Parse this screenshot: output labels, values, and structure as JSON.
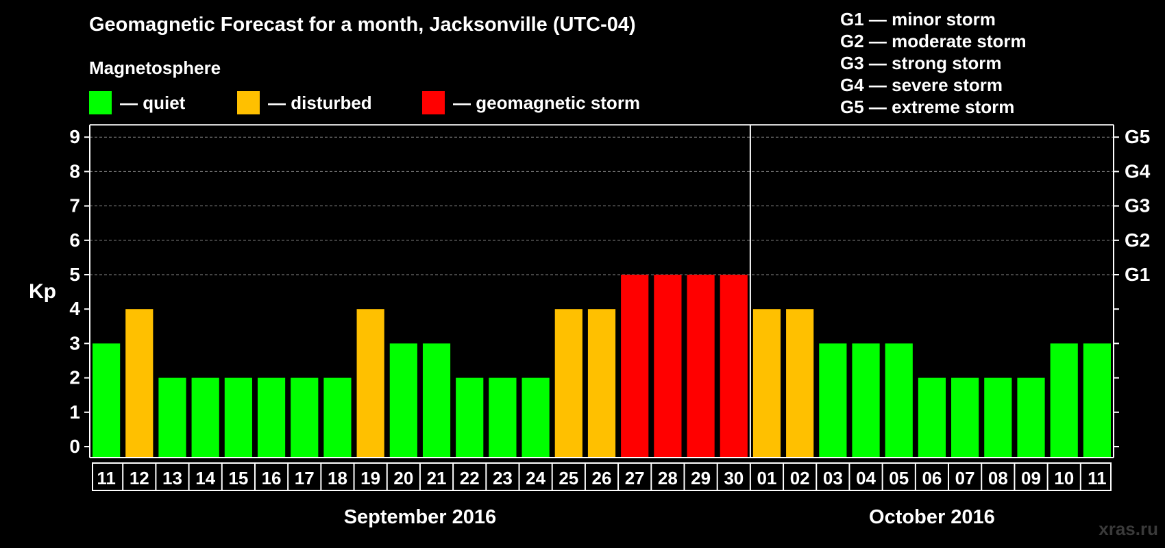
{
  "title": "Geomagnetic Forecast for a month, Jacksonville (UTC-04)",
  "legend": {
    "heading": "Magnetosphere",
    "items": [
      {
        "label": "— quiet",
        "color": "#00ff00"
      },
      {
        "label": "— disturbed",
        "color": "#ffc000"
      },
      {
        "label": "— geomagnetic storm",
        "color": "#ff0000"
      }
    ]
  },
  "g_scale": [
    "G1 — minor storm",
    "G2 — moderate storm",
    "G3 — strong storm",
    "G4 — severe storm",
    "G5 — extreme storm"
  ],
  "watermark": "xras.ru",
  "colors": {
    "quiet": "#00ff00",
    "disturbed": "#ffc000",
    "storm": "#ff0000",
    "background": "#000000",
    "axis": "#ffffff",
    "grid": "#888888"
  },
  "chart_data": {
    "type": "bar",
    "ylabel": "Kp",
    "ylim": [
      0,
      9
    ],
    "yticks": [
      0,
      1,
      2,
      3,
      4,
      5,
      6,
      7,
      8,
      9
    ],
    "right_ticks": [
      {
        "value": 5,
        "label": "G1"
      },
      {
        "value": 6,
        "label": "G2"
      },
      {
        "value": 7,
        "label": "G3"
      },
      {
        "value": 8,
        "label": "G4"
      },
      {
        "value": 9,
        "label": "G5"
      }
    ],
    "categories": [
      "11",
      "12",
      "13",
      "14",
      "15",
      "16",
      "17",
      "18",
      "19",
      "20",
      "21",
      "22",
      "23",
      "24",
      "25",
      "26",
      "27",
      "28",
      "29",
      "30",
      "01",
      "02",
      "03",
      "04",
      "05",
      "06",
      "07",
      "08",
      "09",
      "10",
      "11"
    ],
    "values": [
      3,
      4,
      2,
      2,
      2,
      2,
      2,
      2,
      4,
      3,
      3,
      2,
      2,
      2,
      4,
      4,
      5,
      5,
      5,
      5,
      4,
      4,
      3,
      3,
      3,
      2,
      2,
      2,
      2,
      3,
      3
    ],
    "levels": [
      "quiet",
      "disturbed",
      "quiet",
      "quiet",
      "quiet",
      "quiet",
      "quiet",
      "quiet",
      "disturbed",
      "quiet",
      "quiet",
      "quiet",
      "quiet",
      "quiet",
      "disturbed",
      "disturbed",
      "storm",
      "storm",
      "storm",
      "storm",
      "disturbed",
      "disturbed",
      "quiet",
      "quiet",
      "quiet",
      "quiet",
      "quiet",
      "quiet",
      "quiet",
      "quiet",
      "quiet"
    ],
    "months": [
      {
        "label": "September 2016",
        "start": 0,
        "end": 19
      },
      {
        "label": "October 2016",
        "start": 20,
        "end": 30
      }
    ],
    "separator_after_index": 19
  }
}
